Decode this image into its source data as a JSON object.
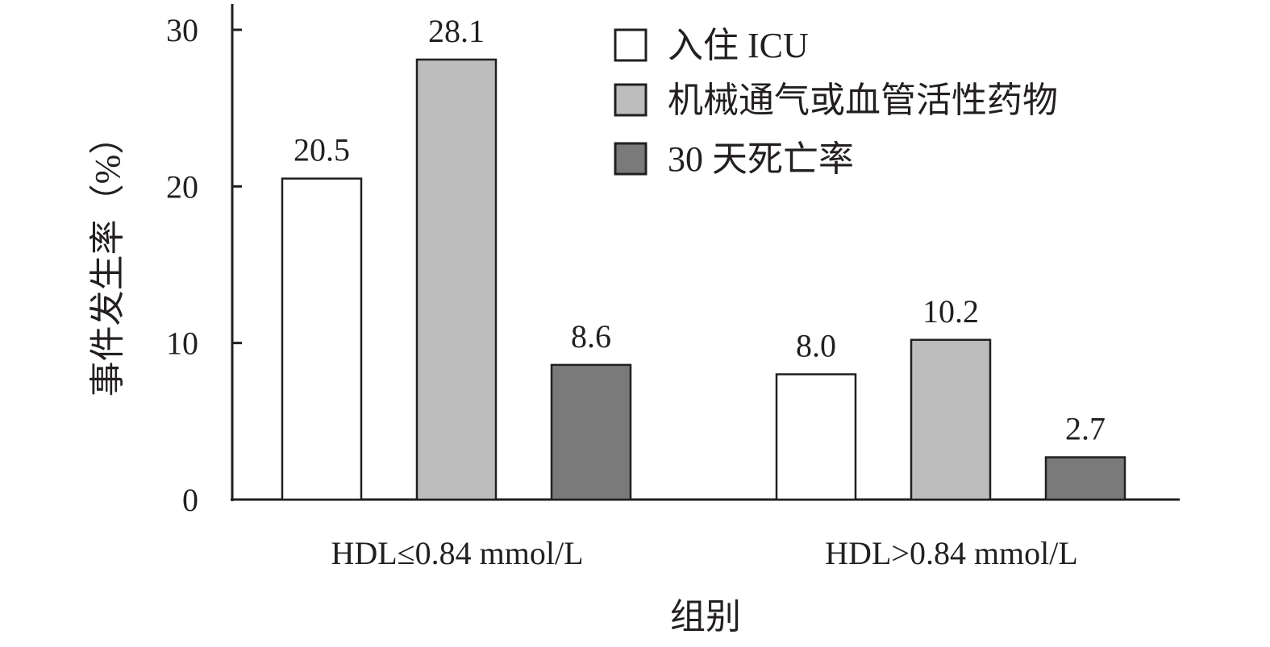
{
  "chart_data": {
    "type": "bar",
    "title": "",
    "xlabel": "组别",
    "ylabel": "事件发生率（%）",
    "ylim": [
      0,
      30
    ],
    "yticks": [
      0,
      10,
      20,
      30
    ],
    "categories": [
      "HDL≤0.84 mmol/L",
      "HDL>0.84 mmol/L"
    ],
    "series": [
      {
        "name": "入住 ICU",
        "values": [
          20.5,
          8.0
        ],
        "labels": [
          "20.5",
          "8.0"
        ],
        "color": "#ffffff"
      },
      {
        "name": "机械通气或血管活性药物",
        "values": [
          28.1,
          10.2
        ],
        "labels": [
          "28.1",
          "10.2"
        ],
        "color": "#bdbdbd"
      },
      {
        "name": "30 天死亡率",
        "values": [
          8.6,
          2.7
        ],
        "labels": [
          "8.6",
          "2.7"
        ],
        "color": "#7a7a7a"
      }
    ],
    "legend": "top-right",
    "grid": false
  }
}
